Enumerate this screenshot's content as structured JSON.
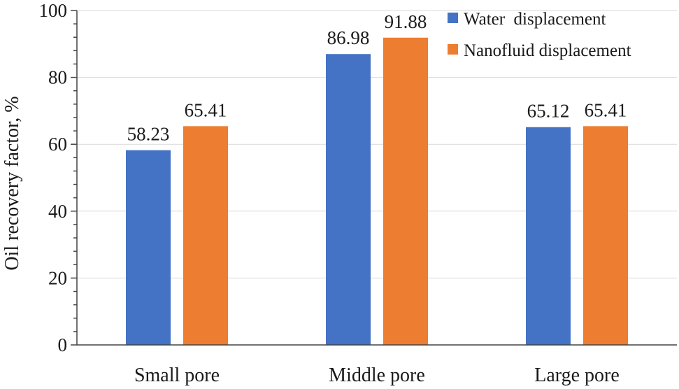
{
  "chart_data": {
    "type": "bar",
    "title": "",
    "xlabel": "",
    "ylabel": "Oil recovery factor, %",
    "ylim": [
      0,
      100
    ],
    "yticks": [
      0,
      20,
      40,
      60,
      80,
      100
    ],
    "grid": true,
    "legend_position": "top-right",
    "categories": [
      "Small pore",
      "Middle pore",
      "Large pore"
    ],
    "series": [
      {
        "name": "Water  displacement",
        "color": "#4472c4",
        "values": [
          58.23,
          86.98,
          65.12
        ],
        "labels": [
          "58.23",
          "86.98",
          "65.12"
        ]
      },
      {
        "name": "Nanofluid displacement",
        "color": "#ed7d31",
        "values": [
          65.41,
          91.88,
          65.41
        ],
        "labels": [
          "65.41",
          "91.88",
          "65.41"
        ]
      }
    ]
  }
}
